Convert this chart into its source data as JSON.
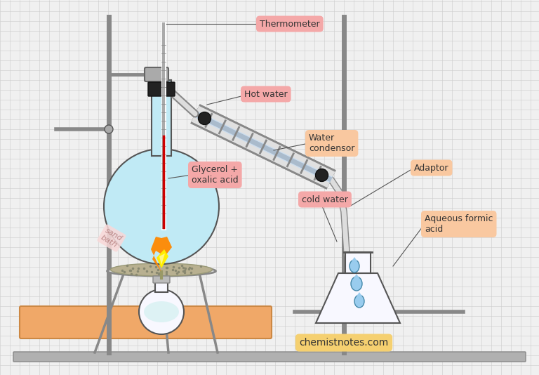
{
  "bg_color": "#f0f0f0",
  "grid_color": "#cccccc",
  "label_bg_salmon": "#f4a8a8",
  "label_bg_peach": "#f9c8a0",
  "label_bg_yellow": "#f5d070",
  "flask_fill": "#c0eaf5",
  "sand_color": "#b8b090",
  "base_color": "#f0a868",
  "stand_color": "#999999",
  "clamp_color": "#222222",
  "tube_color": "#aaaaaa",
  "tube_light": "#e0e0e0",
  "labels": {
    "thermometer": "Thermometer",
    "hot_water": "Hot water",
    "water_condenser": "Water\ncondensor",
    "glycerol": "Glycerol +\noxalic acid",
    "cold_water": "cold water",
    "adaptor": "Adaptor",
    "aqueous": "Aqueous formic\nacid",
    "sand_bath": "sand\nbath",
    "website": "chemistnotes.com"
  }
}
